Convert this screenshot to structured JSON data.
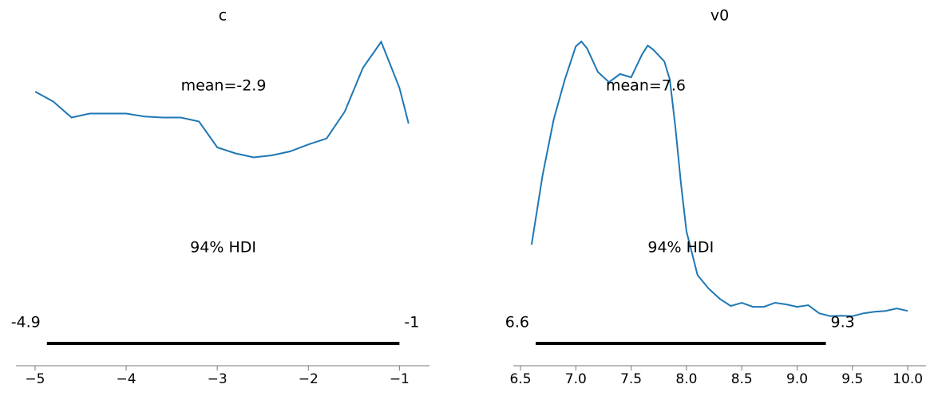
{
  "chart_data": [
    {
      "type": "kde",
      "title": "c",
      "color": "#1f77b4",
      "x": [
        -5.0,
        -4.8,
        -4.6,
        -4.4,
        -4.2,
        -4.0,
        -3.8,
        -3.6,
        -3.4,
        -3.2,
        -3.0,
        -2.8,
        -2.6,
        -2.4,
        -2.2,
        -2.0,
        -1.8,
        -1.6,
        -1.4,
        -1.2,
        -1.0,
        -0.9
      ],
      "values": [
        0.256,
        0.246,
        0.23,
        0.234,
        0.234,
        0.234,
        0.231,
        0.23,
        0.23,
        0.226,
        0.2,
        0.194,
        0.19,
        0.192,
        0.196,
        0.203,
        0.209,
        0.236,
        0.28,
        0.306,
        0.26,
        0.224
      ],
      "mean_text": "mean=-2.9",
      "hdi_title": "94% HDI",
      "hdi": {
        "values": [
          -4.87,
          -1.0
        ],
        "value_labels": [
          "-4.9",
          "-1"
        ]
      },
      "xlim": [
        -5.21,
        -0.67
      ],
      "xticks": [
        {
          "value": -5,
          "label": "−5"
        },
        {
          "value": -4,
          "label": "−4"
        },
        {
          "value": -3,
          "label": "−3"
        },
        {
          "value": -2,
          "label": "−2"
        },
        {
          "value": -1,
          "label": "−1"
        }
      ],
      "ylim": [
        -0.0192,
        0.332
      ]
    },
    {
      "type": "kde",
      "title": "v0",
      "color": "#1f77b4",
      "x": [
        6.6,
        6.7,
        6.8,
        6.9,
        7.0,
        7.05,
        7.1,
        7.2,
        7.3,
        7.4,
        7.5,
        7.6,
        7.65,
        7.7,
        7.8,
        7.85,
        7.9,
        7.95,
        8.0,
        8.1,
        8.2,
        8.3,
        8.4,
        8.5,
        8.6,
        8.7,
        8.8,
        8.9,
        9.0,
        9.1,
        9.2,
        9.3,
        9.4,
        9.5,
        9.6,
        9.7,
        9.8,
        9.9,
        10.0
      ],
      "values": [
        0.251,
        0.422,
        0.559,
        0.657,
        0.739,
        0.751,
        0.735,
        0.676,
        0.651,
        0.671,
        0.663,
        0.72,
        0.741,
        0.731,
        0.702,
        0.657,
        0.539,
        0.402,
        0.284,
        0.176,
        0.143,
        0.118,
        0.1,
        0.108,
        0.098,
        0.098,
        0.108,
        0.104,
        0.098,
        0.102,
        0.082,
        0.075,
        0.076,
        0.075,
        0.082,
        0.086,
        0.088,
        0.094,
        0.088
      ],
      "mean_text": "mean=7.6",
      "hdi_title": "94% HDI",
      "hdi": {
        "values": [
          6.637,
          9.26
        ],
        "value_labels": [
          "6.6",
          "9.3"
        ]
      },
      "xlim": [
        6.435,
        10.165
      ],
      "xticks": [
        6.5,
        {
          "value": 7,
          "label": "7.0"
        },
        7.5,
        {
          "value": 8,
          "label": "8.0"
        },
        8.5,
        {
          "value": 9,
          "label": "9.0"
        },
        9.5,
        {
          "value": 10,
          "label": "10.0"
        }
      ],
      "ylim": [
        -0.047,
        0.814
      ]
    }
  ]
}
